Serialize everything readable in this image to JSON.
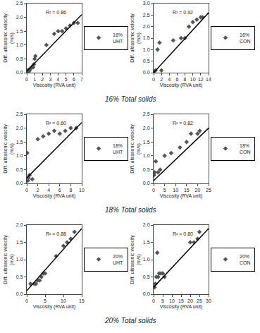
{
  "chart_data": [
    {
      "type": "scatter",
      "x_label": "Viscosity (RVA unit)",
      "y_label": "Diff. ultrasonic velocity\n(m/s)",
      "subtitle": "16% Total solids",
      "annotations": [
        "R² = 0.86"
      ],
      "grid": false,
      "xlim": [
        0,
        7
      ],
      "ylim": [
        0,
        2.5
      ],
      "xticks": [
        0,
        1,
        2,
        3,
        4,
        5,
        6,
        7
      ],
      "yticks": [
        {
          "value": 0,
          "label": "0.0"
        },
        0.5,
        {
          "value": 1.0,
          "label": "1.0"
        },
        1.5,
        {
          "value": 2.0,
          "label": "2.0"
        },
        2.5
      ],
      "series": [
        {
          "name": "16%\nUHT",
          "type": "scatter",
          "marker": "diamond",
          "color": "#555555",
          "x": [
            0.1,
            0.2,
            0.3,
            0.4,
            0.5,
            0.6,
            0.7,
            0.8,
            0.9,
            1.0,
            1.1,
            2.5,
            3.5,
            4.0,
            4.5,
            5.0,
            5.5,
            6.0,
            6.5
          ],
          "values": [
            0.05,
            0.1,
            0.05,
            0.1,
            0.15,
            0.2,
            0.2,
            0.2,
            0.3,
            0.5,
            0.6,
            1.0,
            1.4,
            1.5,
            1.5,
            1.6,
            1.7,
            1.8,
            1.8
          ]
        },
        {
          "type": "line",
          "line_style": "solid",
          "color": "#000000",
          "x": [
            0,
            7
          ],
          "values": [
            0.05,
            2.1
          ]
        }
      ]
    },
    {
      "type": "scatter",
      "x_label": "Viscosity (RVA unit)",
      "y_label": "Diff. ultrasonic velocity\n(m/s)",
      "annotations": [
        "R² = 0.92"
      ],
      "grid": false,
      "xlim": [
        0,
        14
      ],
      "ylim": [
        0,
        3
      ],
      "xticks": [
        0,
        2,
        4,
        6,
        8,
        10,
        12,
        14
      ],
      "yticks": [
        {
          "value": 0,
          "label": "0.0"
        },
        0.5,
        {
          "value": 1.0,
          "label": "1.0"
        },
        1.5,
        {
          "value": 2.0,
          "label": "2.0"
        },
        2.5,
        {
          "value": 3.0,
          "label": "3.0"
        }
      ],
      "series": [
        {
          "name": "16%\nCON",
          "type": "scatter",
          "marker": "diamond",
          "color": "#555555",
          "x": [
            0.1,
            0.5,
            1.0,
            1.5,
            2.0,
            5.0,
            7.0,
            8.0,
            9.0,
            10.0,
            11.0,
            12.0,
            12.5
          ],
          "values": [
            0.05,
            0.1,
            1.0,
            1.3,
            0.1,
            1.4,
            1.5,
            1.5,
            2.0,
            2.2,
            2.3,
            2.4,
            2.4
          ]
        },
        {
          "type": "line",
          "line_style": "solid",
          "color": "#000000",
          "x": [
            0,
            14
          ],
          "values": [
            0.0,
            2.6
          ]
        }
      ]
    },
    {
      "type": "scatter",
      "x_label": "Viscosity (RVA unit)",
      "y_label": "Diff. ultrasonic velocity\n(m/s)",
      "subtitle": "18% Total solids",
      "annotations": [
        "R² = 0.60"
      ],
      "grid": false,
      "xlim": [
        0,
        10
      ],
      "ylim": [
        0,
        2.5
      ],
      "xticks": [
        0,
        2,
        4,
        6,
        8,
        10
      ],
      "yticks": [
        {
          "value": 0,
          "label": "0.0"
        },
        0.5,
        {
          "value": 1.0,
          "label": "1.0"
        },
        1.5,
        {
          "value": 2.0,
          "label": "2.0"
        },
        2.5
      ],
      "series": [
        {
          "name": "18%\nUHT",
          "type": "scatter",
          "marker": "diamond",
          "color": "#555555",
          "x": [
            0.1,
            0.2,
            0.3,
            0.5,
            1.0,
            2.0,
            3.0,
            4.0,
            5.0,
            6.0,
            7.0,
            8.0,
            9.0
          ],
          "values": [
            1.1,
            0.1,
            0.2,
            0.3,
            0.15,
            1.6,
            1.7,
            1.8,
            1.9,
            1.8,
            1.9,
            2.0,
            2.0
          ]
        },
        {
          "type": "line",
          "line_style": "solid",
          "color": "#000000",
          "x": [
            0,
            10
          ],
          "values": [
            0.2,
            2.2
          ]
        }
      ]
    },
    {
      "type": "scatter",
      "x_label": "Viscosity (RVA unit)",
      "y_label": "Diff. ultrasonic velocity\n(m/s)",
      "annotations": [
        "R² = 0.82"
      ],
      "grid": false,
      "xlim": [
        0,
        25
      ],
      "ylim": [
        0,
        2.5
      ],
      "xticks": [
        0,
        5,
        10,
        15,
        20,
        25
      ],
      "yticks": [
        {
          "value": 0,
          "label": "0.0"
        },
        0.5,
        {
          "value": 1.0,
          "label": "1.0"
        },
        1.5,
        {
          "value": 2.0,
          "label": "2.0"
        },
        2.5
      ],
      "series": [
        {
          "name": "18%\nCON",
          "type": "scatter",
          "marker": "diamond",
          "color": "#555555",
          "x": [
            0.2,
            0.5,
            1.0,
            2.0,
            3.0,
            5.0,
            8.0,
            12.0,
            15.0,
            17.0,
            20.0,
            21.0
          ],
          "values": [
            0.3,
            0.4,
            0.8,
            0.4,
            0.5,
            1.0,
            1.1,
            1.3,
            1.5,
            1.8,
            1.8,
            1.9
          ]
        },
        {
          "type": "line",
          "line_style": "solid",
          "color": "#000000",
          "x": [
            0,
            25
          ],
          "values": [
            0.1,
            2.0
          ]
        }
      ]
    },
    {
      "type": "scatter",
      "x_label": "Viscosity (RVA unit)",
      "y_label": "Diff. ultrasonic velocity\n(m/s)",
      "subtitle": "20% Total solids",
      "annotations": [
        "R² = 0.88"
      ],
      "grid": false,
      "xlim": [
        0,
        15
      ],
      "ylim": [
        0,
        2
      ],
      "xticks": [
        0,
        5,
        10,
        15
      ],
      "yticks": [
        {
          "value": 0,
          "label": "0.0"
        },
        0.5,
        {
          "value": 1.0,
          "label": "1.0"
        },
        1.5,
        {
          "value": 2.0,
          "label": "2.0"
        }
      ],
      "series": [
        {
          "name": "20%\nUHT",
          "type": "scatter",
          "marker": "diamond",
          "color": "#555555",
          "x": [
            1.0,
            2.0,
            2.5,
            3.0,
            3.5,
            4.0,
            4.5,
            5.0,
            8.0,
            10.0,
            11.0,
            12.0,
            13.0
          ],
          "values": [
            0.3,
            0.3,
            0.3,
            0.4,
            0.4,
            0.5,
            0.6,
            0.6,
            1.1,
            1.4,
            1.5,
            1.6,
            1.8
          ]
        },
        {
          "type": "line",
          "line_style": "solid",
          "color": "#000000",
          "x": [
            0,
            15
          ],
          "values": [
            0.1,
            1.9
          ]
        }
      ]
    },
    {
      "type": "scatter",
      "x_label": "Viscosity (RVA unit)",
      "y_label": "Diff. ultrasonic velocity\n(m/s)",
      "annotations": [
        "R² = 0.80"
      ],
      "grid": false,
      "xlim": [
        0,
        30
      ],
      "ylim": [
        0,
        2
      ],
      "xticks": [
        0,
        5,
        10,
        15,
        20,
        25,
        30
      ],
      "yticks": [
        {
          "value": 0,
          "label": "0.0"
        },
        0.5,
        {
          "value": 1.0,
          "label": "1.0"
        },
        1.5,
        {
          "value": 2.0,
          "label": "2.0"
        }
      ],
      "series": [
        {
          "name": "20%\nCON",
          "type": "scatter",
          "marker": "diamond",
          "color": "#555555",
          "x": [
            0.5,
            1.0,
            1.5,
            2.0,
            2.5,
            3.0,
            4.0,
            5.0,
            6.0,
            20.0,
            22.0,
            24.0,
            25.0
          ],
          "values": [
            0.2,
            0.3,
            0.5,
            1.2,
            0.5,
            0.6,
            0.6,
            0.6,
            0.5,
            1.5,
            1.5,
            1.6,
            1.8
          ]
        },
        {
          "type": "line",
          "line_style": "solid",
          "color": "#000000",
          "x": [
            0,
            30
          ],
          "values": [
            0.2,
            1.9
          ]
        }
      ]
    }
  ]
}
